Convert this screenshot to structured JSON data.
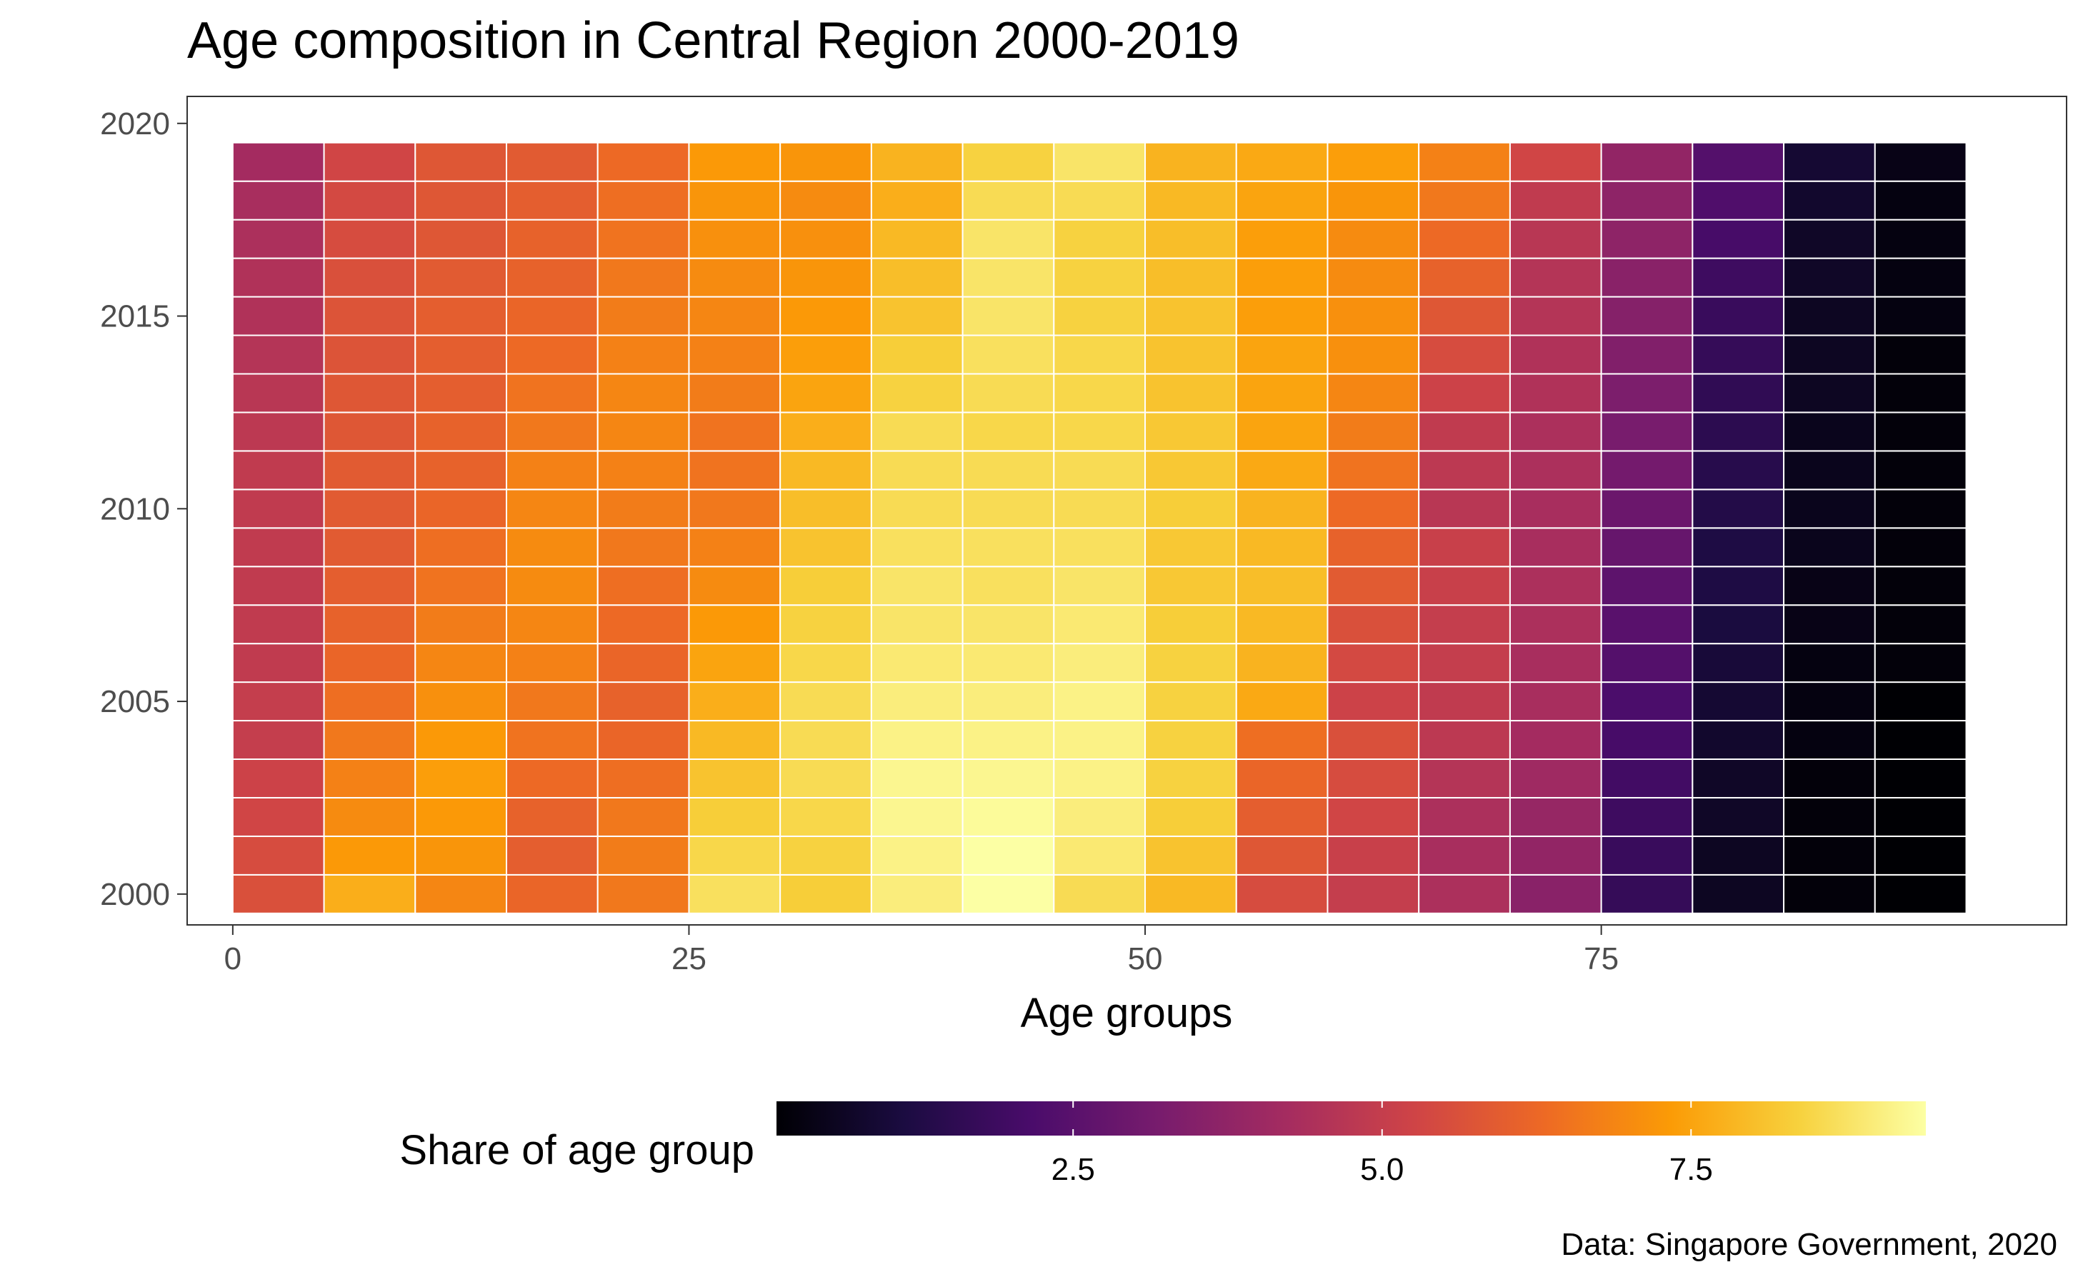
{
  "chart_data": {
    "type": "heatmap",
    "title": "Age composition in Central Region 2000-2019",
    "xlabel": "Age groups",
    "ylabel": "",
    "legend_title": "Share of age group",
    "caption": "Data: Singapore Government, 2020",
    "x": [
      0,
      5,
      10,
      15,
      20,
      25,
      30,
      35,
      40,
      45,
      50,
      55,
      60,
      65,
      70,
      75,
      80,
      85,
      90
    ],
    "y": [
      2000,
      2001,
      2002,
      2003,
      2004,
      2005,
      2006,
      2007,
      2008,
      2009,
      2010,
      2011,
      2012,
      2013,
      2014,
      2015,
      2016,
      2017,
      2018,
      2019
    ],
    "x_ticks": [
      0,
      25,
      50,
      75
    ],
    "y_ticks": [
      2000,
      2005,
      2010,
      2015,
      2020
    ],
    "xlim": [
      -2.5,
      100.5
    ],
    "ylim": [
      1999.2,
      2020.7
    ],
    "color_scale": "inferno",
    "color_range": [
      0.1,
      9.4
    ],
    "legend_ticks": [
      2.5,
      5.0,
      7.5
    ],
    "legend_tick_labels": [
      "2.5",
      "5.0",
      "7.5"
    ],
    "legend_position": "bottom",
    "values": [
      [
        5.6,
        7.7,
        6.9,
        6.2,
        6.6,
        8.7,
        8.3,
        9.0,
        9.4,
        8.6,
        7.9,
        5.5,
        5.0,
        4.4,
        3.6,
        1.7,
        0.6,
        0.2,
        0.1
      ],
      [
        5.5,
        7.3,
        7.2,
        6.0,
        6.7,
        8.5,
        8.4,
        9.1,
        9.4,
        8.9,
        8.1,
        5.8,
        5.1,
        4.3,
        3.8,
        1.8,
        0.6,
        0.2,
        0.1
      ],
      [
        5.3,
        7.0,
        7.3,
        6.1,
        6.6,
        8.3,
        8.5,
        9.2,
        9.3,
        9.0,
        8.3,
        6.0,
        5.3,
        4.4,
        3.9,
        1.9,
        0.7,
        0.2,
        0.1
      ],
      [
        5.2,
        6.8,
        7.4,
        6.3,
        6.4,
        8.1,
        8.6,
        9.2,
        9.2,
        9.1,
        8.4,
        6.2,
        5.5,
        4.6,
        4.1,
        2.0,
        0.7,
        0.2,
        0.1
      ],
      [
        5.0,
        6.6,
        7.3,
        6.5,
        6.2,
        7.9,
        8.6,
        9.1,
        9.1,
        9.1,
        8.4,
        6.4,
        5.6,
        4.8,
        4.2,
        2.1,
        0.8,
        0.3,
        0.1
      ],
      [
        5.0,
        6.4,
        7.1,
        6.6,
        6.1,
        7.7,
        8.6,
        9.0,
        9.0,
        9.1,
        8.4,
        7.6,
        5.2,
        4.9,
        4.3,
        2.2,
        0.9,
        0.3,
        0.1
      ],
      [
        4.9,
        6.2,
        6.9,
        6.8,
        6.2,
        7.5,
        8.5,
        8.9,
        8.9,
        9.0,
        8.4,
        7.8,
        5.4,
        5.0,
        4.3,
        2.4,
        1.0,
        0.3,
        0.2
      ],
      [
        4.9,
        6.1,
        6.7,
        6.9,
        6.3,
        7.3,
        8.4,
        8.8,
        8.8,
        8.9,
        8.3,
        7.9,
        5.6,
        5.0,
        4.4,
        2.5,
        1.1,
        0.4,
        0.2
      ],
      [
        4.9,
        6.0,
        6.5,
        7.0,
        6.4,
        7.0,
        8.3,
        8.8,
        8.7,
        8.8,
        8.2,
        8.0,
        5.9,
        5.1,
        4.4,
        2.6,
        1.2,
        0.4,
        0.2
      ],
      [
        4.9,
        5.9,
        6.4,
        7.0,
        6.6,
        6.8,
        8.1,
        8.7,
        8.7,
        8.7,
        8.2,
        7.9,
        6.1,
        5.1,
        4.3,
        2.8,
        1.2,
        0.5,
        0.2
      ],
      [
        4.9,
        5.9,
        6.2,
        6.9,
        6.7,
        6.6,
        8.0,
        8.6,
        8.6,
        8.6,
        8.3,
        7.8,
        6.3,
        4.7,
        4.3,
        2.9,
        1.3,
        0.5,
        0.2
      ],
      [
        4.9,
        5.9,
        6.1,
        6.8,
        6.8,
        6.5,
        7.9,
        8.6,
        8.6,
        8.6,
        8.2,
        7.6,
        6.5,
        4.8,
        4.4,
        3.1,
        1.4,
        0.5,
        0.2
      ],
      [
        4.8,
        5.8,
        6.1,
        6.6,
        6.9,
        6.5,
        7.7,
        8.6,
        8.5,
        8.5,
        8.2,
        7.5,
        6.7,
        4.9,
        4.4,
        3.2,
        1.5,
        0.5,
        0.2
      ],
      [
        4.7,
        5.8,
        6.0,
        6.5,
        6.9,
        6.7,
        7.5,
        8.4,
        8.6,
        8.5,
        8.1,
        7.5,
        6.9,
        5.2,
        4.5,
        3.3,
        1.6,
        0.6,
        0.2
      ],
      [
        4.6,
        5.7,
        6.0,
        6.3,
        6.8,
        6.8,
        7.4,
        8.3,
        8.7,
        8.5,
        8.1,
        7.5,
        7.1,
        5.5,
        4.5,
        3.4,
        1.7,
        0.6,
        0.2
      ],
      [
        4.5,
        5.7,
        6.0,
        6.2,
        6.7,
        6.9,
        7.3,
        8.1,
        8.8,
        8.4,
        8.1,
        7.4,
        7.1,
        5.8,
        4.6,
        3.5,
        1.8,
        0.6,
        0.3
      ],
      [
        4.5,
        5.6,
        5.9,
        6.1,
        6.6,
        7.0,
        7.2,
        8.0,
        8.8,
        8.4,
        8.0,
        7.4,
        7.0,
        6.1,
        4.6,
        3.6,
        1.9,
        0.7,
        0.3
      ],
      [
        4.4,
        5.5,
        5.8,
        6.1,
        6.5,
        7.1,
        7.1,
        7.9,
        8.8,
        8.4,
        8.0,
        7.4,
        7.0,
        6.3,
        4.7,
        3.7,
        2.1,
        0.7,
        0.3
      ],
      [
        4.3,
        5.4,
        5.8,
        6.0,
        6.4,
        7.2,
        7.0,
        7.7,
        8.6,
        8.6,
        7.9,
        7.5,
        7.2,
        6.6,
        4.9,
        3.7,
        2.3,
        0.8,
        0.3
      ],
      [
        4.2,
        5.3,
        5.8,
        5.9,
        6.3,
        7.3,
        7.2,
        7.8,
        8.4,
        8.8,
        7.8,
        7.6,
        7.4,
        6.8,
        5.3,
        3.8,
        2.4,
        0.9,
        0.4
      ]
    ]
  }
}
